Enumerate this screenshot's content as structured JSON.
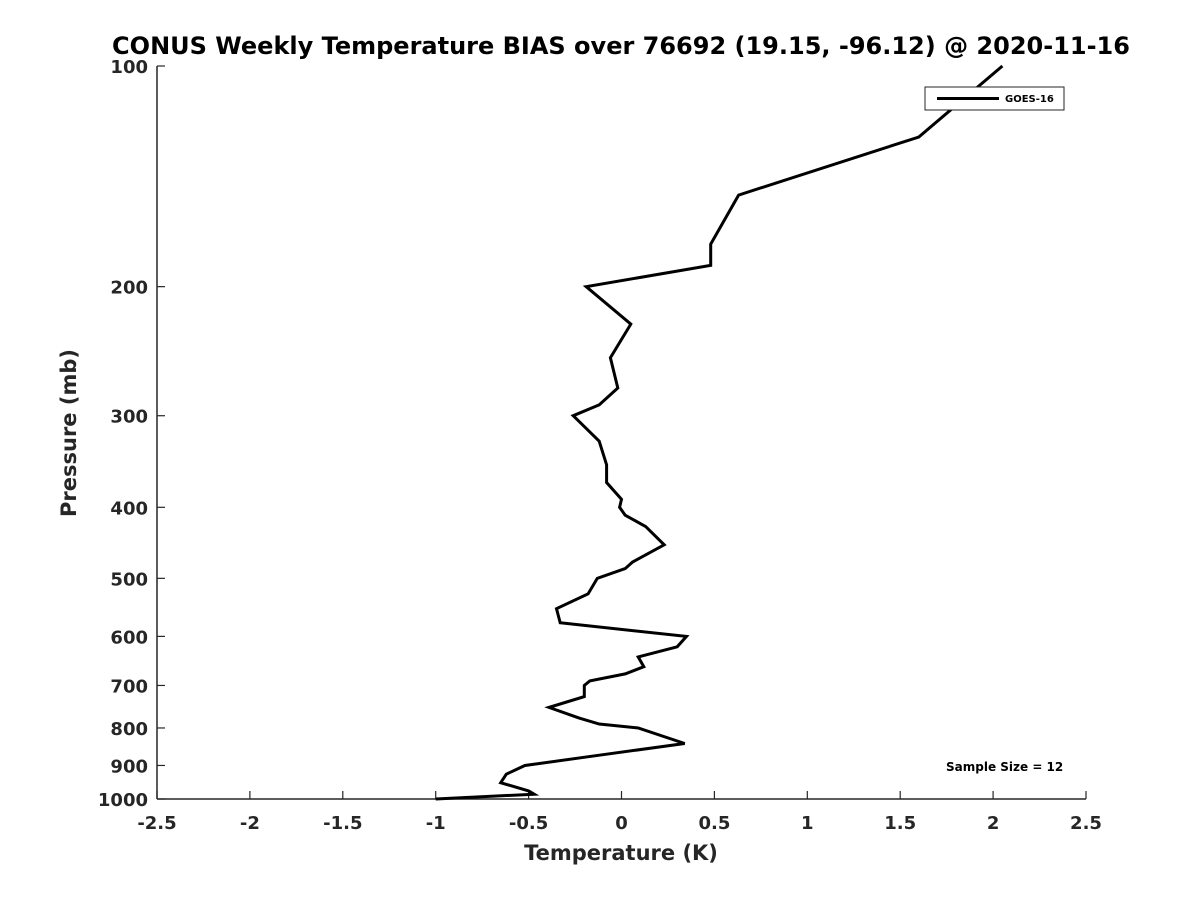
{
  "chart_data": {
    "type": "line",
    "title": "CONUS Weekly Temperature BIAS over 76692 (19.15, -96.12) @ 2020-11-16",
    "xlabel": "Temperature (K)",
    "ylabel": "Pressure (mb)",
    "xlim": [
      -2.5,
      2.5
    ],
    "ylim": [
      100,
      1000
    ],
    "y_scale": "log",
    "y_reversed": true,
    "x_ticks": [
      -2.5,
      -2,
      -1.5,
      -1,
      -0.5,
      0,
      0.5,
      1,
      1.5,
      2,
      2.5
    ],
    "x_tick_labels": [
      "-2.5",
      "-2",
      "-1.5",
      "-1",
      "-0.5",
      "0",
      "0.5",
      "1",
      "1.5",
      "2",
      "2.5"
    ],
    "y_ticks": [
      100,
      200,
      300,
      400,
      500,
      600,
      700,
      800,
      900,
      1000
    ],
    "y_tick_labels": [
      "100",
      "200",
      "300",
      "400",
      "500",
      "600",
      "700",
      "800",
      "900",
      "1000"
    ],
    "grid": false,
    "legend_position": "top-right",
    "series": [
      {
        "name": "GOES-16",
        "color": "#000000",
        "points": [
          [
            2.05,
            100
          ],
          [
            1.6,
            125
          ],
          [
            0.63,
            150
          ],
          [
            0.48,
            175
          ],
          [
            0.48,
            187
          ],
          [
            -0.19,
            200
          ],
          [
            0.05,
            225
          ],
          [
            -0.06,
            250
          ],
          [
            -0.02,
            275
          ],
          [
            -0.12,
            290
          ],
          [
            -0.26,
            300
          ],
          [
            -0.12,
            325
          ],
          [
            -0.08,
            350
          ],
          [
            -0.08,
            370
          ],
          [
            0.0,
            390
          ],
          [
            -0.01,
            400
          ],
          [
            0.02,
            410
          ],
          [
            0.13,
            425
          ],
          [
            0.23,
            450
          ],
          [
            0.06,
            475
          ],
          [
            0.02,
            485
          ],
          [
            -0.13,
            500
          ],
          [
            -0.18,
            525
          ],
          [
            -0.35,
            550
          ],
          [
            -0.33,
            575
          ],
          [
            0.35,
            600
          ],
          [
            0.3,
            620
          ],
          [
            0.09,
            640
          ],
          [
            0.12,
            660
          ],
          [
            0.02,
            675
          ],
          [
            -0.17,
            690
          ],
          [
            -0.2,
            700
          ],
          [
            -0.2,
            725
          ],
          [
            -0.39,
            750
          ],
          [
            -0.23,
            775
          ],
          [
            -0.12,
            790
          ],
          [
            0.09,
            800
          ],
          [
            0.34,
            840
          ],
          [
            -0.1,
            870
          ],
          [
            -0.52,
            900
          ],
          [
            -0.62,
            925
          ],
          [
            -0.65,
            950
          ],
          [
            -0.5,
            975
          ],
          [
            -0.47,
            985
          ],
          [
            -1.0,
            1000
          ]
        ]
      }
    ],
    "annotation": "Sample Size = 12"
  }
}
